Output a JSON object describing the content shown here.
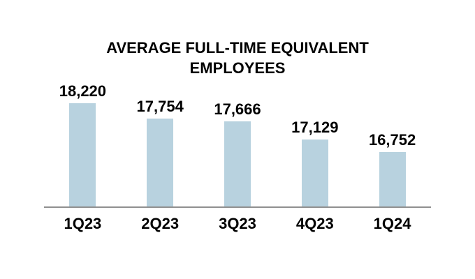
{
  "chart_data": {
    "type": "bar",
    "title": "AVERAGE FULL-TIME EQUIVALENT EMPLOYEES",
    "categories": [
      "1Q23",
      "2Q23",
      "3Q23",
      "4Q23",
      "1Q24"
    ],
    "values": [
      18220,
      17754,
      17666,
      17129,
      16752
    ],
    "value_labels": [
      "18,220",
      "17,754",
      "17,666",
      "17,129",
      "16,752"
    ],
    "xlabel": "",
    "ylabel": "",
    "ylim": [
      15100,
      18600
    ],
    "grid": false,
    "legend": false,
    "bar_color": "#b8d2df",
    "axis_line_color": "#8f8f8f",
    "text_color": "#000000",
    "background_color": "#ffffff"
  }
}
